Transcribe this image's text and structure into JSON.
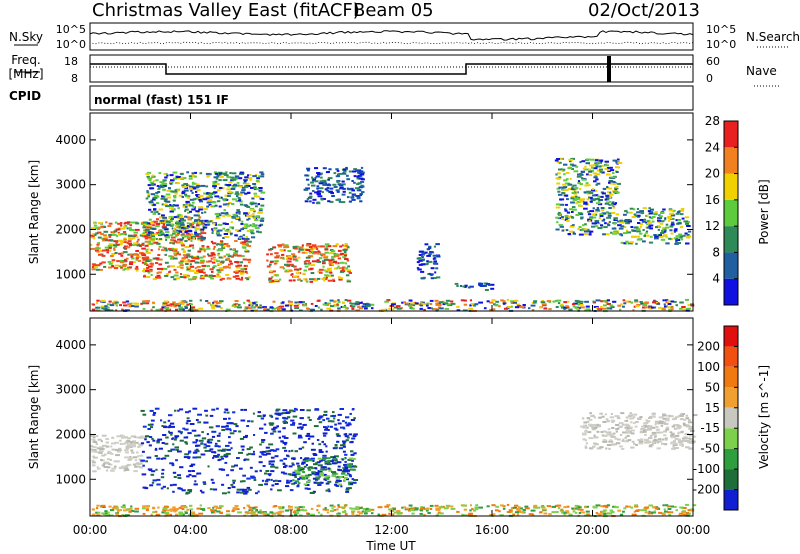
{
  "header": {
    "title": "Christmas Valley East (fitACF)",
    "beam": "Beam 05",
    "date": "02/Oct/2013"
  },
  "sky_panel": {
    "left_label": "N.Sky",
    "left_ticks": [
      "10^5",
      "10^0"
    ],
    "right_ticks": [
      "10^5",
      "10^0"
    ],
    "right_label": "N.Search"
  },
  "freq_panel": {
    "left_label_1": "Freq.",
    "left_label_2": "[MHz]",
    "left_ticks": [
      "18",
      "8"
    ],
    "right_ticks": [
      "60",
      "0"
    ],
    "right_label": "Nave"
  },
  "cpid": {
    "label": "CPID",
    "value": "normal (fast) 151 IF"
  },
  "chart_data": [
    {
      "type": "heatmap",
      "title": "",
      "xlabel": "Time UT",
      "ylabel": "Slant Range [km]",
      "x_ticks": [
        "00:00",
        "04:00",
        "08:00",
        "12:00",
        "16:00",
        "20:00",
        "00:00"
      ],
      "y_ticks": [
        "1000",
        "2000",
        "3000",
        "4000"
      ],
      "xlim": [
        0,
        24
      ],
      "ylim": [
        180,
        4600
      ],
      "colorbar": {
        "label": "Power [dB]",
        "ticks": [
          "4",
          "8",
          "12",
          "16",
          "20",
          "24",
          "28"
        ],
        "colors": [
          "#1010e0",
          "#2060a0",
          "#2e8b57",
          "#5dcc3c",
          "#f0d000",
          "#f08020",
          "#e82020"
        ]
      },
      "echo_regions": [
        {
          "t0": 0.0,
          "t1": 2.3,
          "r0": 1100,
          "r1": 2200,
          "level": "high"
        },
        {
          "t0": 2.0,
          "t1": 4.5,
          "r0": 900,
          "r1": 2300,
          "level": "high"
        },
        {
          "t0": 4.5,
          "t1": 6.3,
          "r0": 900,
          "r1": 1800,
          "level": "high"
        },
        {
          "t0": 7.0,
          "t1": 10.3,
          "r0": 850,
          "r1": 1700,
          "level": "high"
        },
        {
          "t0": 2.2,
          "t1": 6.8,
          "r0": 1800,
          "r1": 3300,
          "level": "mid"
        },
        {
          "t0": 8.5,
          "t1": 10.8,
          "r0": 2600,
          "r1": 3400,
          "level": "low"
        },
        {
          "t0": 13.0,
          "t1": 13.8,
          "r0": 900,
          "r1": 1700,
          "level": "low"
        },
        {
          "t0": 14.5,
          "t1": 16.0,
          "r0": 650,
          "r1": 820,
          "level": "low"
        },
        {
          "t0": 18.5,
          "t1": 21.0,
          "r0": 1900,
          "r1": 3600,
          "level": "mid"
        },
        {
          "t0": 21.0,
          "t1": 23.8,
          "r0": 1700,
          "r1": 2500,
          "level": "mid"
        },
        {
          "t0": 0.0,
          "t1": 24.0,
          "r0": 200,
          "r1": 450,
          "level": "mixed"
        }
      ]
    },
    {
      "type": "heatmap",
      "title": "",
      "xlabel": "Time UT",
      "ylabel": "Slant Range [km]",
      "x_ticks": [
        "00:00",
        "04:00",
        "08:00",
        "12:00",
        "16:00",
        "20:00",
        "00:00"
      ],
      "y_ticks": [
        "1000",
        "2000",
        "3000",
        "4000"
      ],
      "xlim": [
        0,
        24
      ],
      "ylim": [
        180,
        4600
      ],
      "colorbar": {
        "label": "Velocity [m s^-1]",
        "ticks": [
          "200",
          "100",
          "50",
          "15",
          "-15",
          "-50",
          "-100",
          "-200"
        ],
        "colors": [
          "#1020d0",
          "#1e6e3a",
          "#2e9e3e",
          "#7dd04a",
          "#c8c8c0",
          "#f0a030",
          "#f07a10",
          "#f05010",
          "#e01010"
        ]
      },
      "echo_regions": [
        {
          "t0": 0.0,
          "t1": 2.0,
          "r0": 1200,
          "r1": 2000,
          "level": "ground"
        },
        {
          "t0": 2.0,
          "t1": 10.5,
          "r0": 700,
          "r1": 2600,
          "level": "toward"
        },
        {
          "t0": 8.0,
          "t1": 10.5,
          "r0": 900,
          "r1": 1500,
          "level": "low_pos"
        },
        {
          "t0": 19.5,
          "t1": 24.0,
          "r0": 1700,
          "r1": 2500,
          "level": "ground"
        },
        {
          "t0": 0.0,
          "t1": 24.0,
          "r0": 200,
          "r1": 450,
          "level": "away"
        }
      ]
    }
  ]
}
